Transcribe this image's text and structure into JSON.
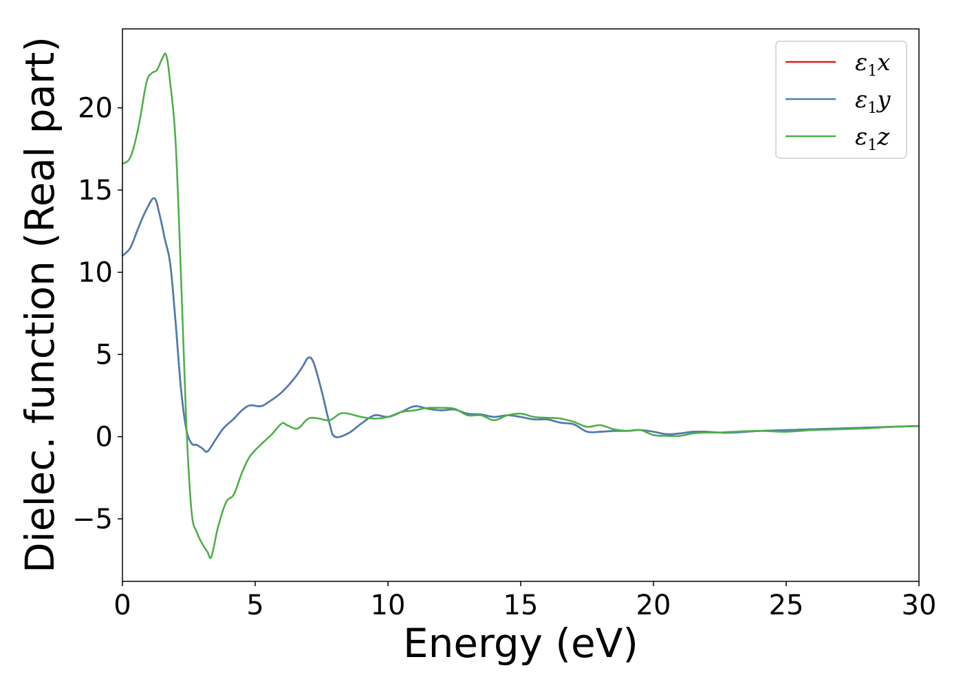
{
  "chart_data": {
    "type": "line",
    "title": "",
    "xlabel": "Energy (eV)",
    "ylabel": "Dielec. function (Real part)",
    "xlim": [
      0,
      30
    ],
    "ylim": [
      -8.8,
      24.8
    ],
    "xticks": [
      0,
      5,
      10,
      15,
      20,
      25,
      30
    ],
    "xtick_labels": [
      "0",
      "5",
      "10",
      "15",
      "20",
      "25",
      "30"
    ],
    "yticks": [
      -5,
      0,
      5,
      10,
      15,
      20
    ],
    "ytick_labels": [
      "−5",
      "0",
      "5",
      "10",
      "15",
      "20"
    ],
    "grid": false,
    "legend_position": "top-right",
    "series": [
      {
        "name": "ε",
        "sub": "1",
        "axis": "x",
        "color": "#e41a1c",
        "x": [
          0,
          0.3,
          0.6,
          0.9,
          1.2,
          1.4,
          1.6,
          1.8,
          2.0,
          2.2,
          2.4,
          2.6,
          2.8,
          3.0,
          3.2,
          3.5,
          3.8,
          4.2,
          4.5,
          4.8,
          5.2,
          5.5,
          6.0,
          6.5,
          6.8,
          7.0,
          7.2,
          7.5,
          7.8,
          8.0,
          8.5,
          9.0,
          9.5,
          10.0,
          10.5,
          11.0,
          11.5,
          12.0,
          12.5,
          13.0,
          13.5,
          14.0,
          14.5,
          15.0,
          15.5,
          16.0,
          16.5,
          17.0,
          17.5,
          18.0,
          18.5,
          19.0,
          19.5,
          20.0,
          20.5,
          21.0,
          21.5,
          22.0,
          22.5,
          23.0,
          24.0,
          25.0,
          26.0,
          27.0,
          28.0,
          29.0,
          30.0
        ],
        "y": [
          11.0,
          11.5,
          12.7,
          13.8,
          14.5,
          13.5,
          12.0,
          10.5,
          7.0,
          3.0,
          0.5,
          -0.4,
          -0.5,
          -0.7,
          -0.9,
          -0.2,
          0.5,
          1.1,
          1.6,
          1.9,
          1.85,
          2.1,
          2.7,
          3.6,
          4.3,
          4.8,
          4.5,
          2.8,
          0.8,
          0.0,
          0.2,
          0.8,
          1.3,
          1.2,
          1.5,
          1.85,
          1.7,
          1.6,
          1.65,
          1.4,
          1.35,
          1.2,
          1.3,
          1.2,
          1.05,
          1.05,
          0.85,
          0.75,
          0.3,
          0.3,
          0.35,
          0.35,
          0.4,
          0.3,
          0.15,
          0.2,
          0.3,
          0.3,
          0.25,
          0.25,
          0.35,
          0.4,
          0.45,
          0.5,
          0.55,
          0.6,
          0.65
        ]
      },
      {
        "name": "ε",
        "sub": "1",
        "axis": "y",
        "color": "#4a7fb2",
        "x": [
          0,
          0.3,
          0.6,
          0.9,
          1.2,
          1.4,
          1.6,
          1.8,
          2.0,
          2.2,
          2.4,
          2.6,
          2.8,
          3.0,
          3.2,
          3.5,
          3.8,
          4.2,
          4.5,
          4.8,
          5.2,
          5.5,
          6.0,
          6.5,
          6.8,
          7.0,
          7.2,
          7.5,
          7.8,
          8.0,
          8.5,
          9.0,
          9.5,
          10.0,
          10.5,
          11.0,
          11.5,
          12.0,
          12.5,
          13.0,
          13.5,
          14.0,
          14.5,
          15.0,
          15.5,
          16.0,
          16.5,
          17.0,
          17.5,
          18.0,
          18.5,
          19.0,
          19.5,
          20.0,
          20.5,
          21.0,
          21.5,
          22.0,
          22.5,
          23.0,
          24.0,
          25.0,
          26.0,
          27.0,
          28.0,
          29.0,
          30.0
        ],
        "y": [
          11.0,
          11.5,
          12.7,
          13.8,
          14.5,
          13.5,
          12.0,
          10.5,
          7.0,
          3.0,
          0.5,
          -0.4,
          -0.5,
          -0.7,
          -0.9,
          -0.2,
          0.5,
          1.1,
          1.6,
          1.9,
          1.85,
          2.1,
          2.7,
          3.6,
          4.3,
          4.8,
          4.5,
          2.8,
          0.8,
          0.0,
          0.2,
          0.8,
          1.3,
          1.2,
          1.5,
          1.85,
          1.7,
          1.6,
          1.65,
          1.4,
          1.35,
          1.2,
          1.3,
          1.2,
          1.05,
          1.05,
          0.85,
          0.75,
          0.3,
          0.3,
          0.35,
          0.35,
          0.4,
          0.3,
          0.15,
          0.2,
          0.3,
          0.3,
          0.25,
          0.25,
          0.35,
          0.4,
          0.45,
          0.5,
          0.55,
          0.6,
          0.65
        ]
      },
      {
        "name": "ε",
        "sub": "1",
        "axis": "z",
        "color": "#4daf4a",
        "x": [
          0,
          0.3,
          0.6,
          0.9,
          1.1,
          1.3,
          1.5,
          1.65,
          1.8,
          2.0,
          2.2,
          2.4,
          2.6,
          2.8,
          3.0,
          3.2,
          3.35,
          3.6,
          3.9,
          4.2,
          4.5,
          4.8,
          5.2,
          5.6,
          6.0,
          6.2,
          6.6,
          7.0,
          7.4,
          7.8,
          8.2,
          8.5,
          9.0,
          9.5,
          10.0,
          10.5,
          11.0,
          11.5,
          12.0,
          12.5,
          13.0,
          13.5,
          14.0,
          14.5,
          15.0,
          15.5,
          16.0,
          16.5,
          17.0,
          17.5,
          18.0,
          18.5,
          19.0,
          19.5,
          20.0,
          20.5,
          21.0,
          21.5,
          22.0,
          22.5,
          23.0,
          24.0,
          25.0,
          26.0,
          27.0,
          28.0,
          29.0,
          30.0
        ],
        "y": [
          16.6,
          17.0,
          18.8,
          21.5,
          22.1,
          22.3,
          23.0,
          23.2,
          21.5,
          18.0,
          10.0,
          1.0,
          -4.5,
          -5.8,
          -6.5,
          -7.0,
          -7.3,
          -5.5,
          -4.0,
          -3.5,
          -2.2,
          -1.2,
          -0.5,
          0.1,
          0.8,
          0.7,
          0.5,
          1.1,
          1.1,
          1.0,
          1.4,
          1.4,
          1.2,
          1.1,
          1.2,
          1.5,
          1.6,
          1.75,
          1.75,
          1.7,
          1.3,
          1.3,
          1.0,
          1.3,
          1.4,
          1.2,
          1.15,
          1.1,
          0.9,
          0.6,
          0.7,
          0.45,
          0.35,
          0.4,
          0.1,
          0.05,
          0.05,
          0.2,
          0.25,
          0.25,
          0.3,
          0.35,
          0.3,
          0.4,
          0.45,
          0.5,
          0.6,
          0.65
        ]
      }
    ]
  }
}
